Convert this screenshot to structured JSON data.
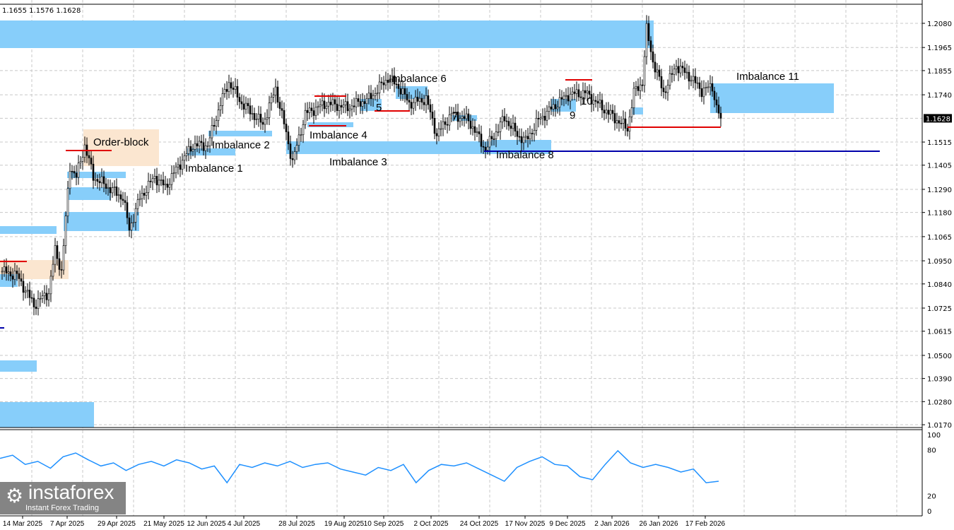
{
  "header": {
    "ohlc": "1.1655 1.1576 1.1628"
  },
  "current_price": "1.1628",
  "logo": {
    "name": "instaforex",
    "tagline": "Instant Forex Trading"
  },
  "chart_data": {
    "type": "candlestick",
    "symbol_ohlc": "1.1655 1.1576 1.1628",
    "y_ticks": [
      "1.2080",
      "1.1965",
      "1.1855",
      "1.1740",
      "1.1628",
      "1.1515",
      "1.1405",
      "1.1290",
      "1.1180",
      "1.1065",
      "1.0950",
      "1.0840",
      "1.0725",
      "1.0615",
      "1.0500",
      "1.0390",
      "1.0280",
      "1.0170"
    ],
    "ylim": [
      1.017,
      1.208
    ],
    "x_ticks": [
      "14 Mar 2025",
      "7 Apr 2025",
      "29 Apr 2025",
      "21 May 2025",
      "12 Jun 2025",
      "4 Jul 2025",
      "28 Jul 2025",
      "19 Aug 2025",
      "10 Sep 2025",
      "2 Oct 2025",
      "24 Oct 2025",
      "17 Nov 2025",
      "9 Dec 2025",
      "2 Jan 2026",
      "26 Jan 2026",
      "17 Feb 2026"
    ],
    "close_path": [
      [
        0,
        1.09
      ],
      [
        7,
        1.088
      ],
      [
        15,
        1.074
      ],
      [
        22,
        1.08
      ],
      [
        25,
        1.1
      ],
      [
        28,
        1.09
      ],
      [
        32,
        1.14
      ],
      [
        35,
        1.135
      ],
      [
        39,
        1.15
      ],
      [
        43,
        1.135
      ],
      [
        50,
        1.13
      ],
      [
        57,
        1.125
      ],
      [
        60,
        1.11
      ],
      [
        65,
        1.125
      ],
      [
        72,
        1.135
      ],
      [
        77,
        1.13
      ],
      [
        83,
        1.14
      ],
      [
        90,
        1.15
      ],
      [
        97,
        1.15
      ],
      [
        103,
        1.17
      ],
      [
        107,
        1.18
      ],
      [
        113,
        1.17
      ],
      [
        123,
        1.16
      ],
      [
        129,
        1.177
      ],
      [
        133,
        1.16
      ],
      [
        137,
        1.142
      ],
      [
        143,
        1.165
      ],
      [
        153,
        1.17
      ],
      [
        163,
        1.168
      ],
      [
        173,
        1.172
      ],
      [
        182,
        1.182
      ],
      [
        187,
        1.178
      ],
      [
        192,
        1.17
      ],
      [
        200,
        1.172
      ],
      [
        205,
        1.155
      ],
      [
        212,
        1.165
      ],
      [
        220,
        1.162
      ],
      [
        228,
        1.148
      ],
      [
        237,
        1.163
      ],
      [
        243,
        1.155
      ],
      [
        247,
        1.152
      ],
      [
        253,
        1.162
      ],
      [
        262,
        1.17
      ],
      [
        267,
        1.174
      ],
      [
        275,
        1.175
      ],
      [
        283,
        1.168
      ],
      [
        290,
        1.162
      ],
      [
        295,
        1.158
      ],
      [
        298,
        1.175
      ],
      [
        302,
        1.18
      ],
      [
        304,
        1.205
      ],
      [
        307,
        1.19
      ],
      [
        312,
        1.175
      ],
      [
        318,
        1.188
      ],
      [
        325,
        1.182
      ],
      [
        330,
        1.176
      ],
      [
        335,
        1.178
      ],
      [
        337,
        1.168
      ],
      [
        339,
        1.1628
      ]
    ],
    "zones": [
      {
        "label": "Order-block",
        "kind": "order-block"
      },
      {
        "label": "Imbalance 1"
      },
      {
        "label": "Imbalance 2"
      },
      {
        "label": "Imbalance 3"
      },
      {
        "label": "Imbalance 4"
      },
      {
        "label": "5"
      },
      {
        "label": "Imbalance 6"
      },
      {
        "label": "7"
      },
      {
        "label": "Imbalance 8"
      },
      {
        "label": "9"
      },
      {
        "label": "10"
      },
      {
        "label": "Imbalance 11"
      }
    ],
    "indicator": {
      "y_ticks": [
        "100",
        "80",
        "20",
        "0"
      ],
      "ylim": [
        0,
        100
      ],
      "values": [
        68,
        72,
        60,
        64,
        55,
        70,
        75,
        66,
        58,
        62,
        52,
        60,
        64,
        58,
        66,
        62,
        54,
        58,
        36,
        60,
        56,
        62,
        58,
        64,
        56,
        60,
        62,
        54,
        50,
        46,
        56,
        52,
        60,
        36,
        52,
        60,
        58,
        62,
        54,
        46,
        38,
        56,
        64,
        70,
        60,
        58,
        44,
        40,
        60,
        78,
        62,
        56,
        60,
        56,
        50,
        54,
        36,
        38
      ]
    }
  }
}
